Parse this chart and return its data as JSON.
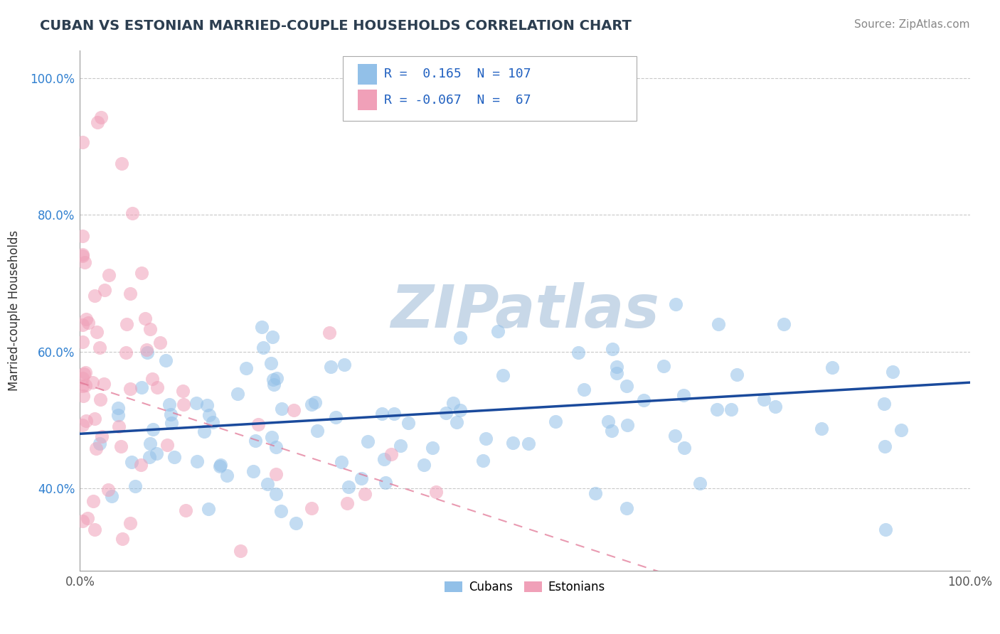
{
  "title": "CUBAN VS ESTONIAN MARRIED-COUPLE HOUSEHOLDS CORRELATION CHART",
  "source": "Source: ZipAtlas.com",
  "ylabel": "Married-couple Households",
  "xlim": [
    0,
    1
  ],
  "ylim": [
    0.28,
    1.04
  ],
  "x_ticks": [
    0.0,
    0.25,
    0.5,
    0.75,
    1.0
  ],
  "x_tick_labels": [
    "0.0%",
    "",
    "",
    "",
    "100.0%"
  ],
  "y_ticks": [
    0.4,
    0.6,
    0.8,
    1.0
  ],
  "y_tick_labels": [
    "40.0%",
    "60.0%",
    "80.0%",
    "100.0%"
  ],
  "cuban_R": 0.165,
  "cuban_N": 107,
  "estonian_R": -0.067,
  "estonian_N": 67,
  "cuban_color": "#92C0E8",
  "estonian_color": "#F0A0B8",
  "cuban_line_color": "#1A4A9C",
  "estonian_line_color": "#E07090",
  "watermark": "ZIPatlas",
  "watermark_color": "#C8D8E8",
  "legend_label_cubans": "Cubans",
  "legend_label_estonians": "Estonians",
  "cuban_line_start": 0.48,
  "cuban_line_end": 0.555,
  "estonian_line_start": 0.555,
  "estonian_line_end": 0.13,
  "title_color": "#2C3E50",
  "source_color": "#888888",
  "ytick_color": "#3080D0",
  "xtick_color": "#555555"
}
